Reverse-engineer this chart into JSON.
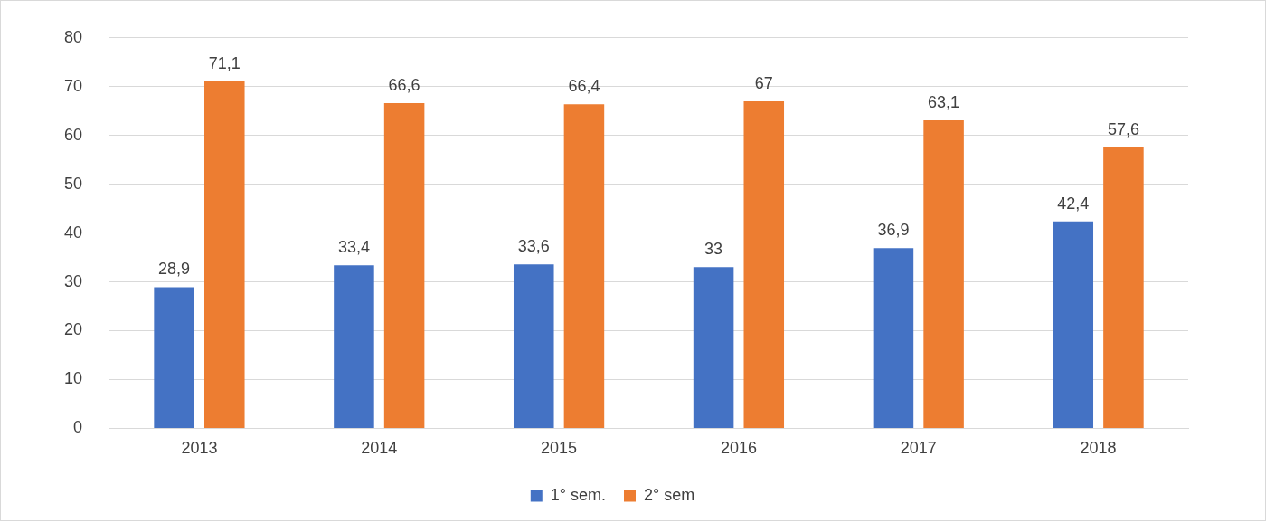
{
  "chart_data": {
    "type": "bar",
    "categories": [
      "2013",
      "2014",
      "2015",
      "2016",
      "2017",
      "2018"
    ],
    "series": [
      {
        "name": "1° sem.",
        "color": "#4472c4",
        "values": [
          28.9,
          33.4,
          33.6,
          33,
          36.9,
          42.4
        ],
        "value_labels": [
          "28,9",
          "33,4",
          "33,6",
          "33",
          "36,9",
          "42,4"
        ]
      },
      {
        "name": "2° sem",
        "color": "#ed7d31",
        "values": [
          71.1,
          66.6,
          66.4,
          67,
          63.1,
          57.6
        ],
        "value_labels": [
          "71,1",
          "66,6",
          "66,4",
          "67",
          "63,1",
          "57,6"
        ]
      }
    ],
    "ylim": [
      0,
      80
    ],
    "yticks": [
      0,
      10,
      20,
      30,
      40,
      50,
      60,
      70,
      80
    ],
    "grid": "y",
    "legend": "bottom"
  }
}
